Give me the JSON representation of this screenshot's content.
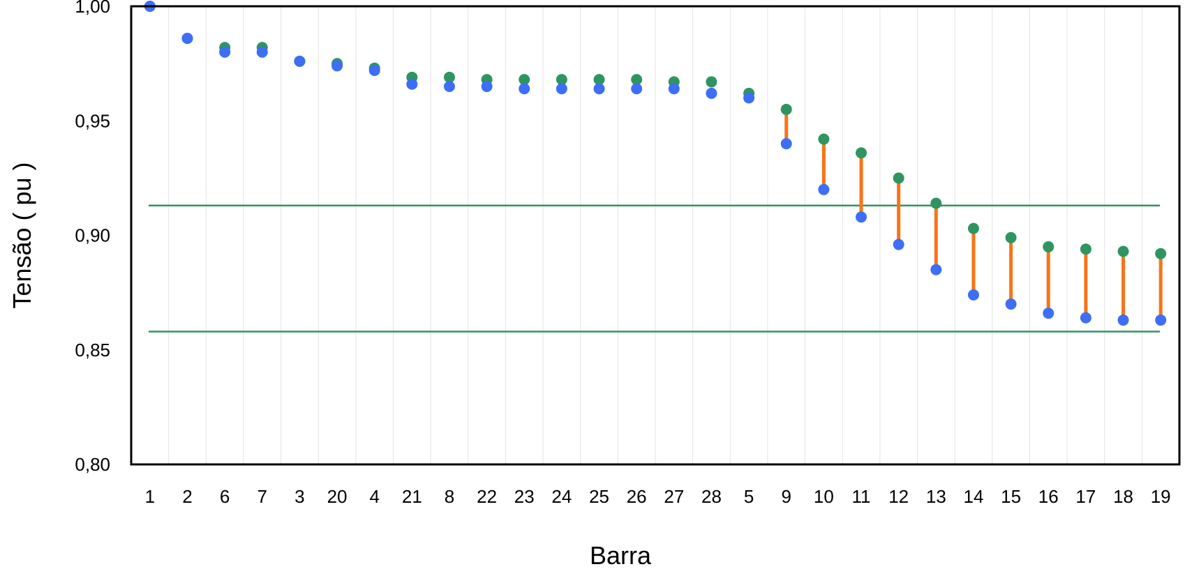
{
  "chart_data": {
    "type": "scatter",
    "title": "",
    "xlabel": "Barra",
    "ylabel": "Tensão ( pu )",
    "ylim": [
      0.8,
      1.0
    ],
    "yticks": [
      "0,80",
      "0,85",
      "0,90",
      "0,95",
      "1,00"
    ],
    "grid": "vertical",
    "categories": [
      "1",
      "2",
      "6",
      "7",
      "3",
      "20",
      "4",
      "21",
      "8",
      "22",
      "23",
      "24",
      "25",
      "26",
      "27",
      "28",
      "5",
      "9",
      "10",
      "11",
      "12",
      "13",
      "14",
      "15",
      "16",
      "17",
      "18",
      "19"
    ],
    "series": [
      {
        "color": "#2e9560",
        "values": [
          1.0,
          0.986,
          0.982,
          0.982,
          0.976,
          0.975,
          0.973,
          0.969,
          0.969,
          0.968,
          0.968,
          0.968,
          0.968,
          0.968,
          0.967,
          0.967,
          0.962,
          0.955,
          0.942,
          0.936,
          0.925,
          0.914,
          0.903,
          0.899,
          0.895,
          0.894,
          0.893,
          0.892
        ]
      },
      {
        "color": "#3d6ef5",
        "values": [
          1.0,
          0.986,
          0.98,
          0.98,
          0.976,
          0.974,
          0.972,
          0.966,
          0.965,
          0.965,
          0.964,
          0.964,
          0.964,
          0.964,
          0.964,
          0.962,
          0.96,
          0.94,
          0.92,
          0.908,
          0.896,
          0.885,
          0.874,
          0.87,
          0.866,
          0.864,
          0.863,
          0.863
        ]
      }
    ],
    "difference_bar_color": "#f97316",
    "reference_lines": [
      {
        "value": 0.913,
        "color": "#2e9560"
      },
      {
        "value": 0.858,
        "color": "#2e9560"
      }
    ]
  }
}
